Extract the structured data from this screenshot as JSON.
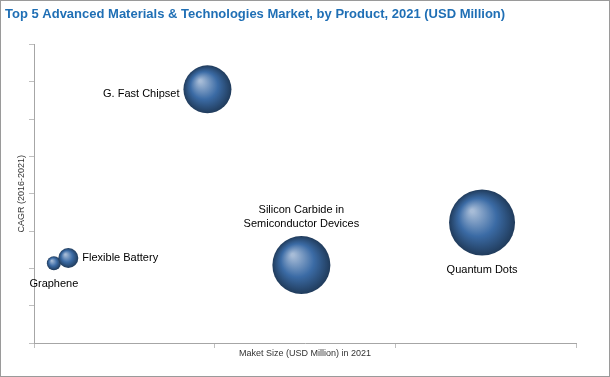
{
  "chart_data": {
    "type": "bubble",
    "title": "Top 5 Advanced Materials & Technologies Market, by Product, 2021 (USD Million)",
    "x_label": "Maket Size (USD Million) in 2021",
    "y_label": "CAGR (2016-2021)",
    "categories": [
      "Graphene",
      "Flexible Battery",
      "G. Fast Chipset",
      "Silicon Carbide in\nSemiconductor Devices",
      "Quantum Dots"
    ],
    "x": [
      1.1,
      1.9,
      9.6,
      14.8,
      24.8
    ],
    "values": [
      21.4,
      22.8,
      68,
      20.9,
      32.3
    ],
    "sizes": [
      7,
      10,
      24,
      29,
      33
    ],
    "color": "#3b6ba5",
    "xlim": [
      0,
      30
    ],
    "xticks": [
      0,
      10,
      20,
      30
    ],
    "ylim": [
      0,
      80
    ],
    "yticks": [
      0,
      10,
      20,
      30,
      40,
      50,
      60,
      70,
      80
    ],
    "grid": false,
    "tick_labels": false
  }
}
